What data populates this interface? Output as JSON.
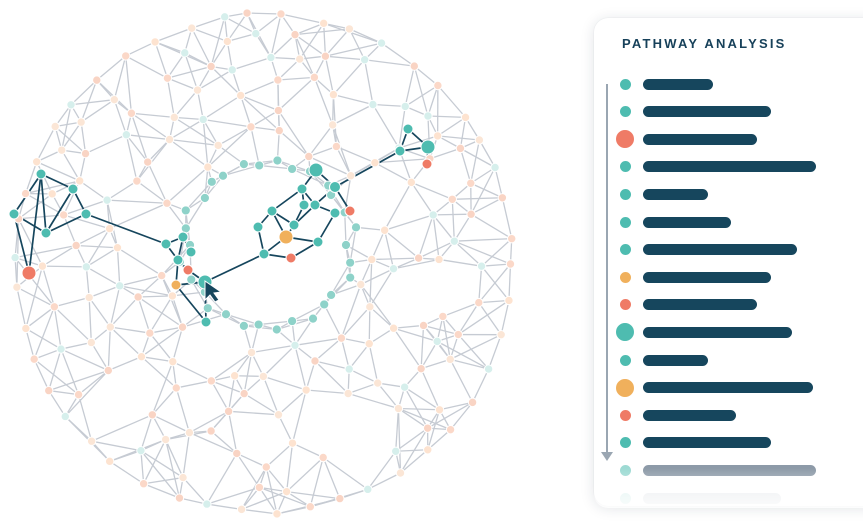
{
  "panel": {
    "title": "PATHWAY ANALYSIS"
  },
  "colors": {
    "dark": "#16465d",
    "teal": "#4ebcb0",
    "coral": "#ef7b66",
    "amber": "#f0b05c",
    "grey_edge": "#c6cbd3",
    "faded_bar": "#8795a3"
  },
  "steps": [
    {
      "color": "teal",
      "dot": "small",
      "bar_fraction": 0.4
    },
    {
      "color": "teal",
      "dot": "small",
      "bar_fraction": 0.73
    },
    {
      "color": "coral",
      "dot": "large",
      "bar_fraction": 0.65
    },
    {
      "color": "teal",
      "dot": "small",
      "bar_fraction": 0.99
    },
    {
      "color": "teal",
      "dot": "small",
      "bar_fraction": 0.37
    },
    {
      "color": "teal",
      "dot": "small",
      "bar_fraction": 0.5
    },
    {
      "color": "teal",
      "dot": "small",
      "bar_fraction": 0.88
    },
    {
      "color": "amber",
      "dot": "small",
      "bar_fraction": 0.73
    },
    {
      "color": "coral",
      "dot": "small",
      "bar_fraction": 0.65
    },
    {
      "color": "teal",
      "dot": "large",
      "bar_fraction": 0.85
    },
    {
      "color": "teal",
      "dot": "small",
      "bar_fraction": 0.37
    },
    {
      "color": "amber",
      "dot": "large",
      "bar_fraction": 0.97
    },
    {
      "color": "coral",
      "dot": "small",
      "bar_fraction": 0.53
    },
    {
      "color": "teal",
      "dot": "small",
      "bar_fraction": 0.73
    },
    {
      "color": "teal",
      "dot": "faded",
      "bar_fraction": 0.99
    },
    {
      "color": "teal",
      "dot": "faded",
      "bar_fraction": 0.79
    }
  ],
  "network": {
    "highlighted_path_nodes": 34,
    "background_nodes": 170,
    "cursor": "arrow-cursor-icon"
  }
}
